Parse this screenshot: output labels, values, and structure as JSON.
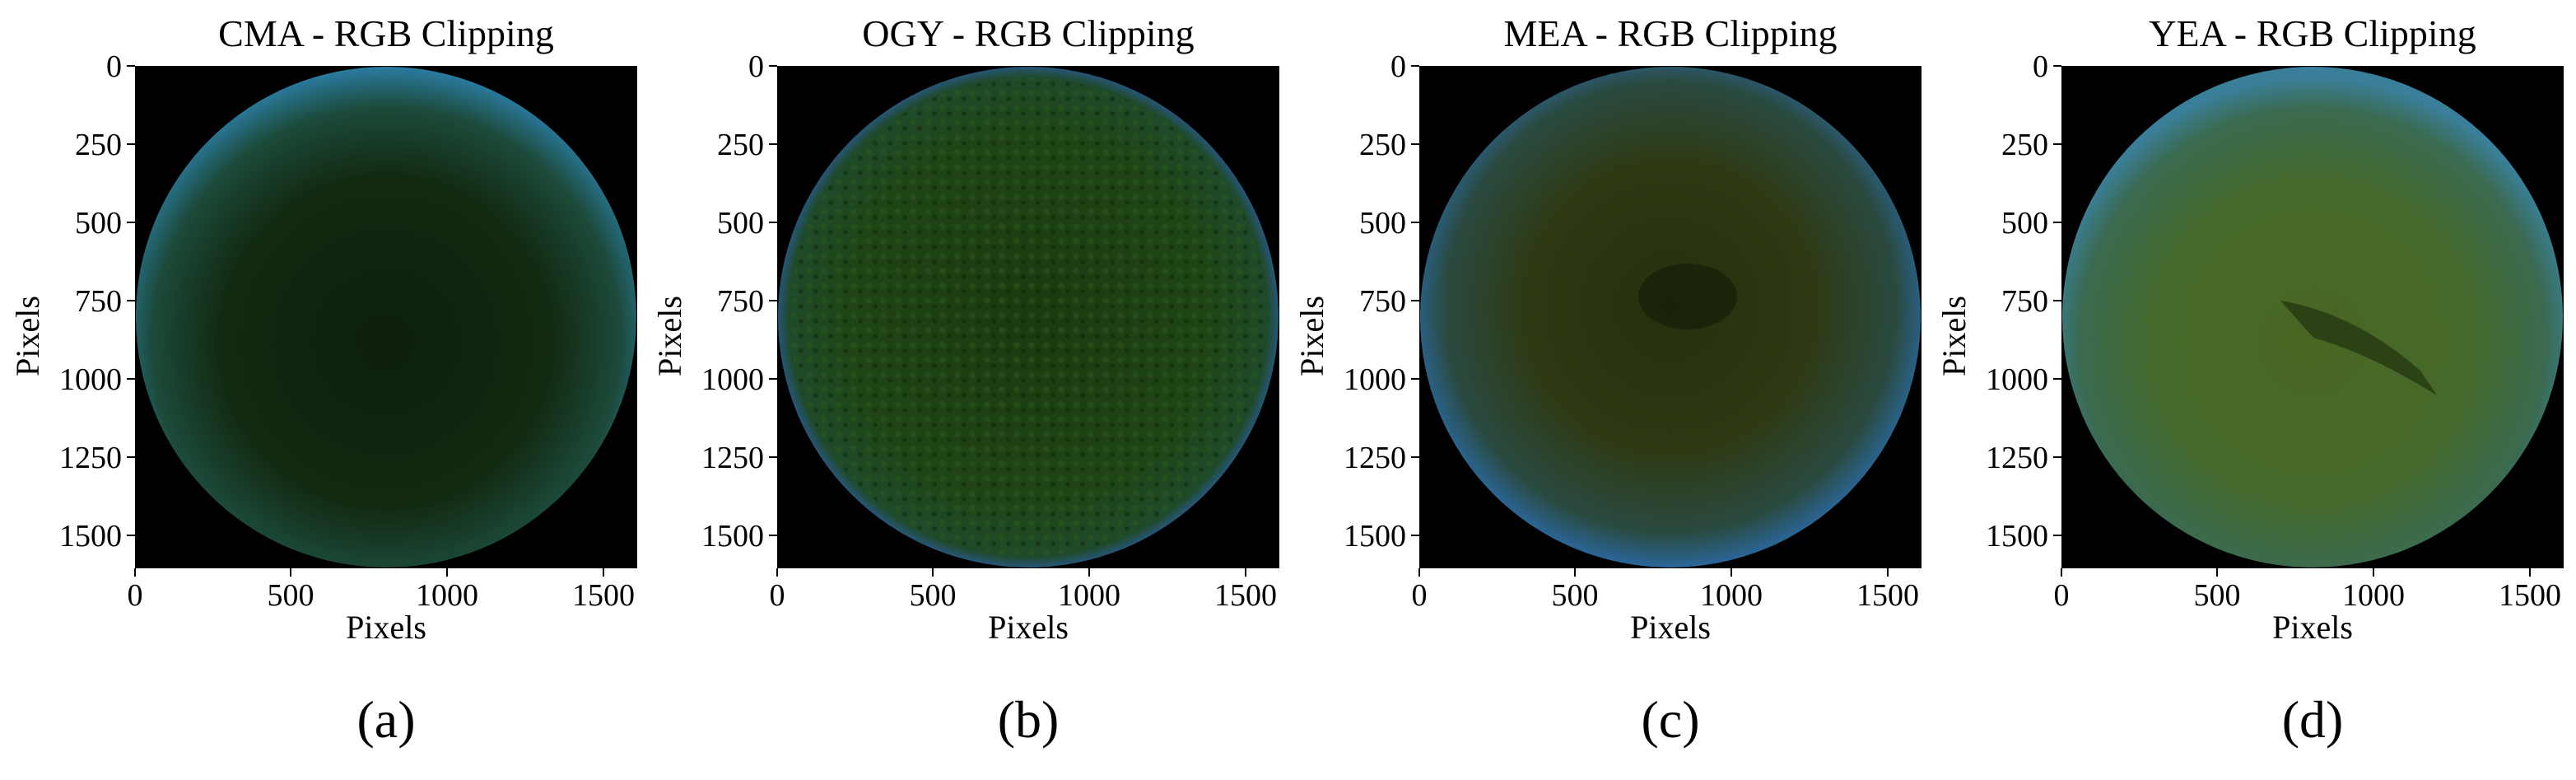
{
  "figure": {
    "panels": [
      {
        "id": "cma",
        "title": "CMA - RGB Clipping",
        "xlabel": "Pixels",
        "ylabel": "Pixels",
        "caption": "(a)",
        "x_ticks": [
          "0",
          "500",
          "1000",
          "1500"
        ],
        "y_ticks": [
          "0",
          "250",
          "500",
          "750",
          "1000",
          "1250",
          "1500"
        ],
        "image_desc": "dark circular petri dish, teal-blue rim, dark green interior",
        "colors": {
          "rim": "#2a7ba0",
          "inner": "#0f2410",
          "outer": "#123b2a"
        }
      },
      {
        "id": "ogy",
        "title": "OGY - RGB Clipping",
        "xlabel": "Pixels",
        "ylabel": "Pixels",
        "caption": "(b)",
        "x_ticks": [
          "0",
          "500",
          "1000",
          "1500"
        ],
        "y_ticks": [
          "0",
          "250",
          "500",
          "750",
          "1000",
          "1250",
          "1500"
        ],
        "image_desc": "circular petri dish with dense green textured growth and blue edges",
        "colors": {
          "rim": "#2d5fbf",
          "inner": "#1a3a12",
          "outer": "#1f4a1a"
        }
      },
      {
        "id": "mea",
        "title": "MEA - RGB Clipping",
        "xlabel": "Pixels",
        "ylabel": "Pixels",
        "caption": "(c)",
        "x_ticks": [
          "0",
          "500",
          "1000",
          "1500"
        ],
        "y_ticks": [
          "0",
          "250",
          "500",
          "750",
          "1000",
          "1250",
          "1500"
        ],
        "image_desc": "circular petri dish with olive-green center and blue rim",
        "colors": {
          "rim": "#2a6aa5",
          "inner": "#2a3410",
          "outer": "#2a4a3a"
        }
      },
      {
        "id": "yea",
        "title": "YEA - RGB Clipping",
        "xlabel": "Pixels",
        "ylabel": "Pixels",
        "caption": "(d)",
        "x_ticks": [
          "0",
          "500",
          "1000",
          "1500"
        ],
        "y_ticks": [
          "0",
          "250",
          "500",
          "750",
          "1000",
          "1250",
          "1500"
        ],
        "image_desc": "circular petri dish with bright yellow-green growth, darker diagonal streak",
        "colors": {
          "rim": "#3a7f9a",
          "inner": "#4a6a24",
          "outer": "#3a6a4a"
        }
      }
    ]
  }
}
